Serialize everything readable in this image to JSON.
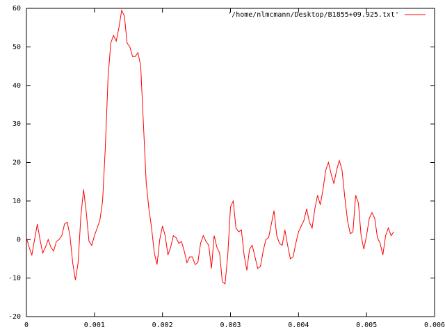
{
  "chart_data": {
    "type": "line",
    "x": [
      0,
      4e-05,
      8e-05,
      0.00012,
      0.00016,
      0.0002,
      0.00024,
      0.00028,
      0.00032,
      0.00036,
      0.0004,
      0.00044,
      0.00048,
      0.00052,
      0.00056,
      0.0006,
      0.00064,
      0.00068,
      0.00072,
      0.00076,
      0.0008,
      0.00084,
      0.00088,
      0.00092,
      0.00096,
      0.001,
      0.00104,
      0.00108,
      0.00112,
      0.00116,
      0.0012,
      0.00124,
      0.00128,
      0.00132,
      0.00136,
      0.0014,
      0.00144,
      0.00148,
      0.00152,
      0.00156,
      0.0016,
      0.00164,
      0.00168,
      0.00172,
      0.00176,
      0.0018,
      0.00184,
      0.00188,
      0.00192,
      0.00196,
      0.002,
      0.00204,
      0.00208,
      0.00212,
      0.00216,
      0.0022,
      0.00224,
      0.00228,
      0.00232,
      0.00236,
      0.0024,
      0.00244,
      0.00248,
      0.00252,
      0.00256,
      0.0026,
      0.00264,
      0.00268,
      0.00272,
      0.00276,
      0.0028,
      0.00284,
      0.00288,
      0.00292,
      0.00296,
      0.003,
      0.00304,
      0.00308,
      0.00312,
      0.00316,
      0.0032,
      0.00324,
      0.00328,
      0.00332,
      0.00336,
      0.0034,
      0.00344,
      0.00348,
      0.00352,
      0.00356,
      0.0036,
      0.00364,
      0.00368,
      0.00372,
      0.00376,
      0.0038,
      0.00384,
      0.00388,
      0.00392,
      0.00396,
      0.004,
      0.00404,
      0.00408,
      0.00412,
      0.00416,
      0.0042,
      0.00424,
      0.00428,
      0.00432,
      0.00436,
      0.0044,
      0.00444,
      0.00448,
      0.00452,
      0.00456,
      0.0046,
      0.00464,
      0.00468,
      0.00472,
      0.00476,
      0.0048,
      0.00484,
      0.00488,
      0.00492,
      0.00496,
      0.005,
      0.00504,
      0.00508,
      0.00512,
      0.00516,
      0.0052,
      0.00524,
      0.00528,
      0.00532,
      0.00536,
      0.0054
    ],
    "series": [
      {
        "name": "'/home/nlmcmann/Desktop/B1855+09.925.txt'",
        "color": "#ff0000",
        "values": [
          0.5,
          -2,
          -4,
          0,
          4,
          0,
          -3.5,
          -2,
          0,
          -2,
          -3,
          -0.5,
          0,
          1,
          4,
          4.5,
          1,
          -6,
          -10.5,
          -6,
          6,
          13,
          7,
          -0.5,
          -1.5,
          1,
          3,
          5,
          10,
          24,
          42,
          51,
          53,
          51.5,
          55,
          59.5,
          58,
          51,
          50,
          47.5,
          47.5,
          48.5,
          45,
          30,
          15,
          8,
          3,
          -3.5,
          -6.5,
          0,
          3.5,
          1,
          -4,
          -2,
          1,
          0.5,
          -1,
          -0.5,
          -3,
          -6,
          -4.5,
          -4.5,
          -6.5,
          -6,
          -1,
          1,
          -0.5,
          -1.5,
          -7.5,
          1,
          -2,
          -3.5,
          -11,
          -11.5,
          -4,
          8.5,
          10,
          3,
          2,
          2.5,
          -4,
          -8,
          -2.5,
          -1.5,
          -4.5,
          -7.5,
          -7,
          -3,
          0,
          0.5,
          4,
          7.5,
          1,
          -1,
          -1.5,
          2.5,
          -1.5,
          -5,
          -4.5,
          -1,
          2,
          3.5,
          5,
          8,
          4.5,
          3,
          8,
          11.5,
          9,
          13,
          18,
          20,
          17,
          14.5,
          18,
          20.5,
          18,
          11,
          5,
          1.5,
          2,
          11.5,
          9.5,
          1,
          -2.5,
          1,
          5.5,
          7,
          5.5,
          0.5,
          -1,
          -4,
          1,
          3,
          1,
          2
        ]
      }
    ],
    "xlim": [
      0,
      0.006
    ],
    "xticks": [
      0,
      0.001,
      0.002,
      0.003,
      0.004,
      0.005,
      0.006
    ],
    "ylim": [
      -20,
      60
    ],
    "yticks": [
      -20,
      -10,
      0,
      10,
      20,
      30,
      40,
      50,
      60
    ],
    "grid": false,
    "legend": "top-right"
  }
}
